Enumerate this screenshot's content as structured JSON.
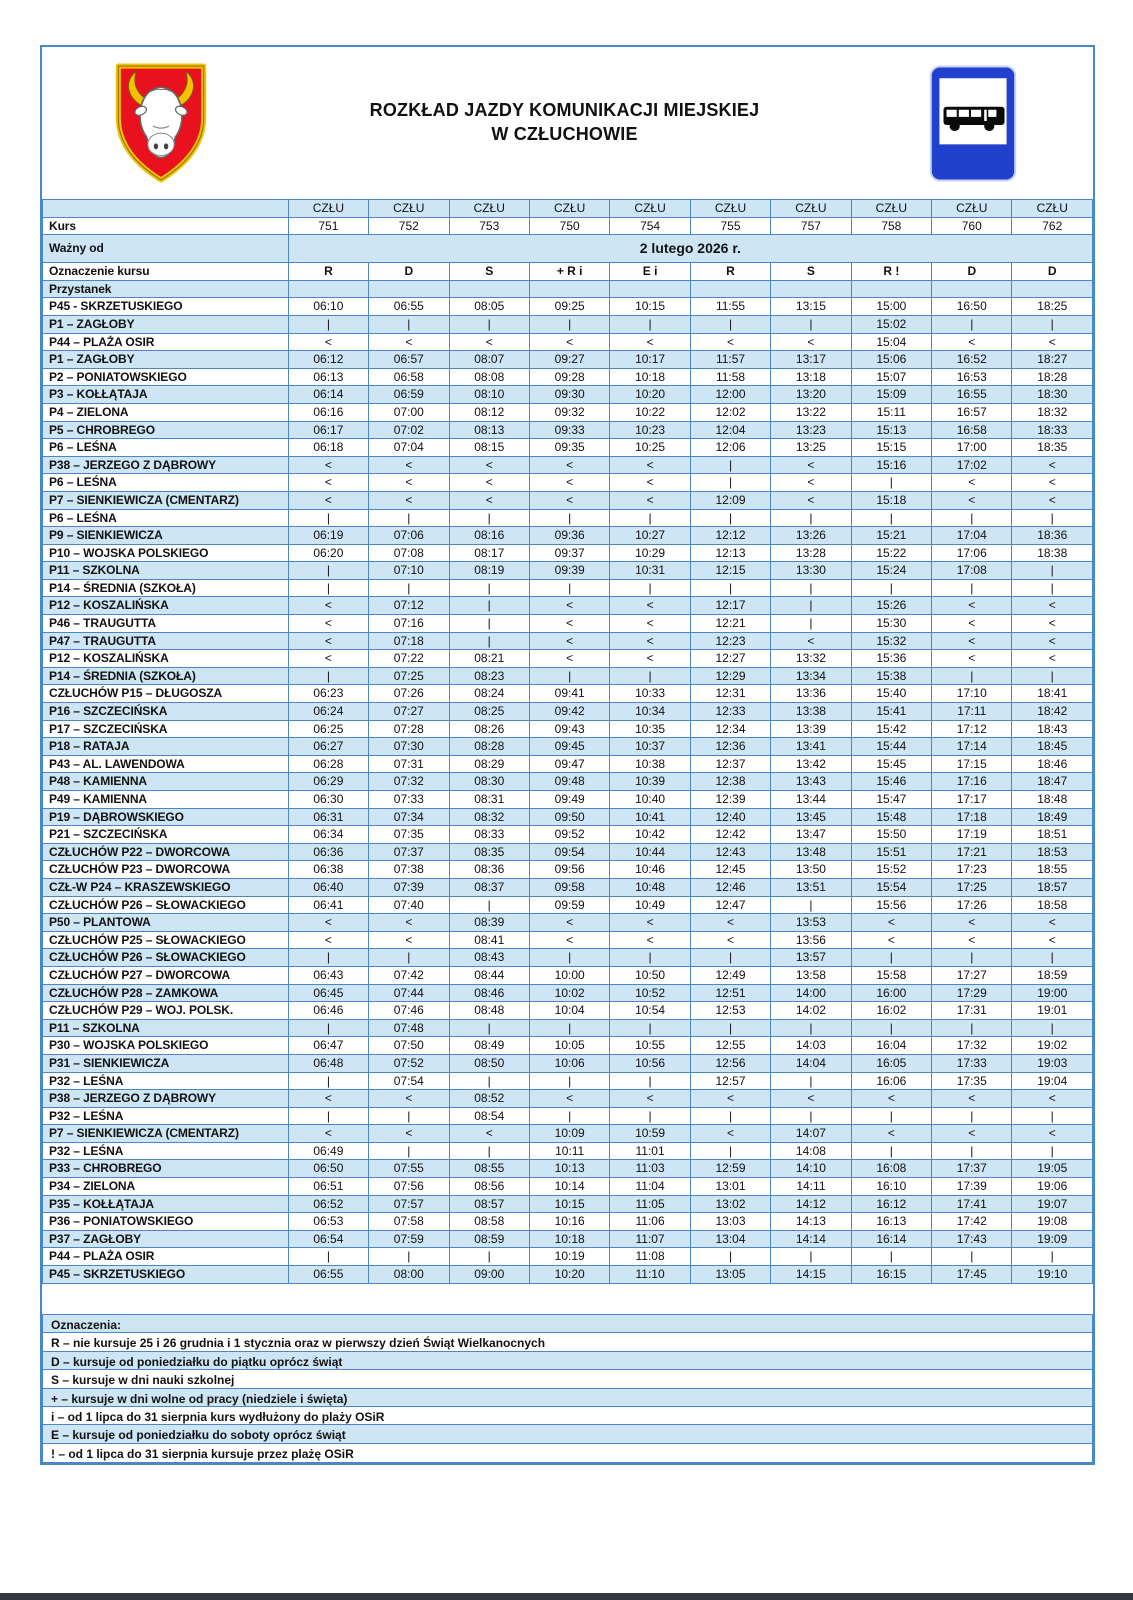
{
  "header": {
    "title_line1": "ROZKŁAD JAZDY KOMUNIKACJI MIEJSKIEJ",
    "title_line2": "W CZŁUCHOWIE",
    "crest_icon": "czluchow-coat-of-arms",
    "sign_icon": "bus-stop-sign"
  },
  "timetable": {
    "route_code": "CZŁU",
    "kurs_label": "Kurs",
    "kurs_numbers": [
      "751",
      "752",
      "753",
      "750",
      "754",
      "755",
      "757",
      "758",
      "760",
      "762"
    ],
    "wazny_od_label": "Ważny od",
    "wazny_od_value": "2 lutego 2026 r.",
    "oznaczenie_label": "Oznaczenie kursu",
    "oznaczenia": [
      "R",
      "D",
      "S",
      "+ R i",
      "E i",
      "R",
      "S",
      "R !",
      "D",
      "D"
    ],
    "przystanek_label": "Przystanek",
    "rows": [
      {
        "stop": "P45 - SKRZETUSKIEGO",
        "times": [
          "06:10",
          "06:55",
          "08:05",
          "09:25",
          "10:15",
          "11:55",
          "13:15",
          "15:00",
          "16:50",
          "18:25"
        ]
      },
      {
        "stop": "P1 – ZAGŁOBY",
        "times": [
          "|",
          "|",
          "|",
          "|",
          "|",
          "|",
          "|",
          "15:02",
          "|",
          "|"
        ]
      },
      {
        "stop": "P44 – PLAŻA OSIR",
        "times": [
          "<",
          "<",
          "<",
          "<",
          "<",
          "<",
          "<",
          "15:04",
          "<",
          "<"
        ]
      },
      {
        "stop": "P1 – ZAGŁOBY",
        "times": [
          "06:12",
          "06:57",
          "08:07",
          "09:27",
          "10:17",
          "11:57",
          "13:17",
          "15:06",
          "16:52",
          "18:27"
        ]
      },
      {
        "stop": "P2 – PONIATOWSKIEGO",
        "times": [
          "06:13",
          "06:58",
          "08:08",
          "09:28",
          "10:18",
          "11:58",
          "13:18",
          "15:07",
          "16:53",
          "18:28"
        ]
      },
      {
        "stop": "P3 – KOŁŁĄTAJA",
        "times": [
          "06:14",
          "06:59",
          "08:10",
          "09:30",
          "10:20",
          "12:00",
          "13:20",
          "15:09",
          "16:55",
          "18:30"
        ]
      },
      {
        "stop": "P4 – ZIELONA",
        "times": [
          "06:16",
          "07:00",
          "08:12",
          "09:32",
          "10:22",
          "12:02",
          "13:22",
          "15:11",
          "16:57",
          "18:32"
        ]
      },
      {
        "stop": "P5 – CHROBREGO",
        "times": [
          "06:17",
          "07:02",
          "08:13",
          "09:33",
          "10:23",
          "12:04",
          "13:23",
          "15:13",
          "16:58",
          "18:33"
        ]
      },
      {
        "stop": "P6 – LEŚNA",
        "times": [
          "06:18",
          "07:04",
          "08:15",
          "09:35",
          "10:25",
          "12:06",
          "13:25",
          "15:15",
          "17:00",
          "18:35"
        ]
      },
      {
        "stop": "P38 – JERZEGO Z DĄBROWY",
        "times": [
          "<",
          "<",
          "<",
          "<",
          "<",
          "|",
          "<",
          "15:16",
          "17:02",
          "<"
        ]
      },
      {
        "stop": "P6 – LEŚNA",
        "times": [
          "<",
          "<",
          "<",
          "<",
          "<",
          "|",
          "<",
          "|",
          "<",
          "<"
        ]
      },
      {
        "stop": "P7 – SIENKIEWICZA (CMENTARZ)",
        "times": [
          "<",
          "<",
          "<",
          "<",
          "<",
          "12:09",
          "<",
          "15:18",
          "<",
          "<"
        ]
      },
      {
        "stop": "P6 – LEŚNA",
        "times": [
          "|",
          "|",
          "|",
          "|",
          "|",
          "|",
          "|",
          "|",
          "|",
          "|"
        ]
      },
      {
        "stop": "P9 – SIENKIEWICZA",
        "times": [
          "06:19",
          "07:06",
          "08:16",
          "09:36",
          "10:27",
          "12:12",
          "13:26",
          "15:21",
          "17:04",
          "18:36"
        ]
      },
      {
        "stop": "P10 – WOJSKA POLSKIEGO",
        "times": [
          "06:20",
          "07:08",
          "08:17",
          "09:37",
          "10:29",
          "12:13",
          "13:28",
          "15:22",
          "17:06",
          "18:38"
        ]
      },
      {
        "stop": "P11 – SZKOLNA",
        "times": [
          "|",
          "07:10",
          "08:19",
          "09:39",
          "10:31",
          "12:15",
          "13:30",
          "15:24",
          "17:08",
          "|"
        ]
      },
      {
        "stop": "P14 – ŚREDNIA (SZKOŁA)",
        "times": [
          "|",
          "|",
          "|",
          "|",
          "|",
          "|",
          "|",
          "|",
          "|",
          "|"
        ]
      },
      {
        "stop": "P12 – KOSZALIŃSKA",
        "times": [
          "<",
          "07:12",
          "|",
          "<",
          "<",
          "12:17",
          "|",
          "15:26",
          "<",
          "<"
        ]
      },
      {
        "stop": "P46 – TRAUGUTTA",
        "times": [
          "<",
          "07:16",
          "|",
          "<",
          "<",
          "12:21",
          "|",
          "15:30",
          "<",
          "<"
        ]
      },
      {
        "stop": "P47 – TRAUGUTTA",
        "times": [
          "<",
          "07:18",
          "|",
          "<",
          "<",
          "12:23",
          "<",
          "15:32",
          "<",
          "<"
        ]
      },
      {
        "stop": "P12 – KOSZALIŃSKA",
        "times": [
          "<",
          "07:22",
          "08:21",
          "<",
          "<",
          "12:27",
          "13:32",
          "15:36",
          "<",
          "<"
        ]
      },
      {
        "stop": "P14 – ŚREDNIA (SZKOŁA)",
        "times": [
          "|",
          "07:25",
          "08:23",
          "|",
          "|",
          "12:29",
          "13:34",
          "15:38",
          "|",
          "|"
        ]
      },
      {
        "stop": "CZŁUCHÓW P15 – DŁUGOSZA",
        "times": [
          "06:23",
          "07:26",
          "08:24",
          "09:41",
          "10:33",
          "12:31",
          "13:36",
          "15:40",
          "17:10",
          "18:41"
        ]
      },
      {
        "stop": "P16 – SZCZECIŃSKA",
        "times": [
          "06:24",
          "07:27",
          "08:25",
          "09:42",
          "10:34",
          "12:33",
          "13:38",
          "15:41",
          "17:11",
          "18:42"
        ]
      },
      {
        "stop": "P17 – SZCZECIŃSKA",
        "times": [
          "06:25",
          "07:28",
          "08:26",
          "09:43",
          "10:35",
          "12:34",
          "13:39",
          "15:42",
          "17:12",
          "18:43"
        ]
      },
      {
        "stop": "P18 – RATAJA",
        "times": [
          "06:27",
          "07:30",
          "08:28",
          "09:45",
          "10:37",
          "12:36",
          "13:41",
          "15:44",
          "17:14",
          "18:45"
        ]
      },
      {
        "stop": "P43 – AL. LAWENDOWA",
        "times": [
          "06:28",
          "07:31",
          "08:29",
          "09:47",
          "10:38",
          "12:37",
          "13:42",
          "15:45",
          "17:15",
          "18:46"
        ]
      },
      {
        "stop": "P48 – KAMIENNA",
        "times": [
          "06:29",
          "07:32",
          "08:30",
          "09:48",
          "10:39",
          "12:38",
          "13:43",
          "15:46",
          "17:16",
          "18:47"
        ]
      },
      {
        "stop": "P49 – KAMIENNA",
        "times": [
          "06:30",
          "07:33",
          "08:31",
          "09:49",
          "10:40",
          "12:39",
          "13:44",
          "15:47",
          "17:17",
          "18:48"
        ]
      },
      {
        "stop": "P19 – DĄBROWSKIEGO",
        "times": [
          "06:31",
          "07:34",
          "08:32",
          "09:50",
          "10:41",
          "12:40",
          "13:45",
          "15:48",
          "17:18",
          "18:49"
        ]
      },
      {
        "stop": "P21 – SZCZECIŃSKA",
        "times": [
          "06:34",
          "07:35",
          "08:33",
          "09:52",
          "10:42",
          "12:42",
          "13:47",
          "15:50",
          "17:19",
          "18:51"
        ]
      },
      {
        "stop": "CZŁUCHÓW P22 – DWORCOWA",
        "times": [
          "06:36",
          "07:37",
          "08:35",
          "09:54",
          "10:44",
          "12:43",
          "13:48",
          "15:51",
          "17:21",
          "18:53"
        ]
      },
      {
        "stop": "CZŁUCHÓW P23 – DWORCOWA",
        "times": [
          "06:38",
          "07:38",
          "08:36",
          "09:56",
          "10:46",
          "12:45",
          "13:50",
          "15:52",
          "17:23",
          "18:55"
        ]
      },
      {
        "stop": "CZŁ-W P24 – KRASZEWSKIEGO",
        "times": [
          "06:40",
          "07:39",
          "08:37",
          "09:58",
          "10:48",
          "12:46",
          "13:51",
          "15:54",
          "17:25",
          "18:57"
        ]
      },
      {
        "stop": "CZŁUCHÓW P26 – SŁOWACKIEGO",
        "times": [
          "06:41",
          "07:40",
          "|",
          "09:59",
          "10:49",
          "12:47",
          "|",
          "15:56",
          "17:26",
          "18:58"
        ]
      },
      {
        "stop": "P50 – PLANTOWA",
        "times": [
          "<",
          "<",
          "08:39",
          "<",
          "<",
          "<",
          "13:53",
          "<",
          "<",
          "<"
        ]
      },
      {
        "stop": "CZŁUCHÓW P25 – SŁOWACKIEGO",
        "times": [
          "<",
          "<",
          "08:41",
          "<",
          "<",
          "<",
          "13:56",
          "<",
          "<",
          "<"
        ]
      },
      {
        "stop": "CZŁUCHÓW P26 – SŁOWACKIEGO",
        "times": [
          "|",
          "|",
          "08:43",
          "|",
          "|",
          "|",
          "13:57",
          "|",
          "|",
          "|"
        ]
      },
      {
        "stop": "CZŁUCHÓW P27 – DWORCOWA",
        "times": [
          "06:43",
          "07:42",
          "08:44",
          "10:00",
          "10:50",
          "12:49",
          "13:58",
          "15:58",
          "17:27",
          "18:59"
        ]
      },
      {
        "stop": "CZŁUCHÓW P28 – ZAMKOWA",
        "times": [
          "06:45",
          "07:44",
          "08:46",
          "10:02",
          "10:52",
          "12:51",
          "14:00",
          "16:00",
          "17:29",
          "19:00"
        ]
      },
      {
        "stop": "CZŁUCHÓW P29 – WOJ. POLSK.",
        "times": [
          "06:46",
          "07:46",
          "08:48",
          "10:04",
          "10:54",
          "12:53",
          "14:02",
          "16:02",
          "17:31",
          "19:01"
        ]
      },
      {
        "stop": "P11 – SZKOLNA",
        "times": [
          "|",
          "07:48",
          "|",
          "|",
          "|",
          "|",
          "|",
          "|",
          "|",
          "|"
        ]
      },
      {
        "stop": "P30 – WOJSKA POLSKIEGO",
        "times": [
          "06:47",
          "07:50",
          "08:49",
          "10:05",
          "10:55",
          "12:55",
          "14:03",
          "16:04",
          "17:32",
          "19:02"
        ]
      },
      {
        "stop": "P31 – SIENKIEWICZA",
        "times": [
          "06:48",
          "07:52",
          "08:50",
          "10:06",
          "10:56",
          "12:56",
          "14:04",
          "16:05",
          "17:33",
          "19:03"
        ]
      },
      {
        "stop": "P32 – LEŚNA",
        "times": [
          "|",
          "07:54",
          "|",
          "|",
          "|",
          "12:57",
          "|",
          "16:06",
          "17:35",
          "19:04"
        ]
      },
      {
        "stop": "P38 – JERZEGO Z DĄBROWY",
        "times": [
          "<",
          "<",
          "08:52",
          "<",
          "<",
          "<",
          "<",
          "<",
          "<",
          "<"
        ]
      },
      {
        "stop": "P32 – LEŚNA",
        "times": [
          "|",
          "|",
          "08:54",
          "|",
          "|",
          "|",
          "|",
          "|",
          "|",
          "|"
        ]
      },
      {
        "stop": "P7 – SIENKIEWICZA (CMENTARZ)",
        "times": [
          "<",
          "<",
          "<",
          "10:09",
          "10:59",
          "<",
          "14:07",
          "<",
          "<",
          "<"
        ]
      },
      {
        "stop": "P32 – LEŚNA",
        "times": [
          "06:49",
          "|",
          "|",
          "10:11",
          "11:01",
          "|",
          "14:08",
          "|",
          "|",
          "|"
        ]
      },
      {
        "stop": "P33 – CHROBREGO",
        "times": [
          "06:50",
          "07:55",
          "08:55",
          "10:13",
          "11:03",
          "12:59",
          "14:10",
          "16:08",
          "17:37",
          "19:05"
        ]
      },
      {
        "stop": "P34 – ZIELONA",
        "times": [
          "06:51",
          "07:56",
          "08:56",
          "10:14",
          "11:04",
          "13:01",
          "14:11",
          "16:10",
          "17:39",
          "19:06"
        ]
      },
      {
        "stop": "P35 – KOŁŁĄTAJA",
        "times": [
          "06:52",
          "07:57",
          "08:57",
          "10:15",
          "11:05",
          "13:02",
          "14:12",
          "16:12",
          "17:41",
          "19:07"
        ]
      },
      {
        "stop": "P36 – PONIATOWSKIEGO",
        "times": [
          "06:53",
          "07:58",
          "08:58",
          "10:16",
          "11:06",
          "13:03",
          "14:13",
          "16:13",
          "17:42",
          "19:08"
        ]
      },
      {
        "stop": "P37 – ZAGŁOBY",
        "times": [
          "06:54",
          "07:59",
          "08:59",
          "10:18",
          "11:07",
          "13:04",
          "14:14",
          "16:14",
          "17:43",
          "19:09"
        ]
      },
      {
        "stop": "P44 – PLAŻA OSIR",
        "times": [
          "|",
          "|",
          "|",
          "10:19",
          "11:08",
          "|",
          "|",
          "|",
          "|",
          "|"
        ]
      },
      {
        "stop": "P45 – SKRZETUSKIEGO",
        "times": [
          "06:55",
          "08:00",
          "09:00",
          "10:20",
          "11:10",
          "13:05",
          "14:15",
          "16:15",
          "17:45",
          "19:10"
        ]
      }
    ]
  },
  "legend": {
    "heading": "Oznaczenia:",
    "items": [
      "R – nie kursuje 25 i 26 grudnia i 1 stycznia oraz w pierwszy dzień Świąt Wielkanocnych",
      "D – kursuje od poniedziałku do piątku oprócz świąt",
      "S – kursuje w dni nauki szkolnej",
      "+ – kursuje w dni wolne od pracy (niedziele i święta)",
      "i – od 1 lipca do 31 sierpnia kurs wydłużony do plaży OSiR",
      "E – kursuje od poniedziałku do soboty oprócz świąt",
      "! – od 1 lipca do 31 sierpnia kursuje przez plażę OSiR"
    ]
  },
  "colors": {
    "row_blue": "#cde5f4",
    "border_blue": "#4a87c7",
    "sign_blue": "#1f41cb",
    "crest_red": "#e8111d",
    "crest_gold": "#f2c200"
  }
}
